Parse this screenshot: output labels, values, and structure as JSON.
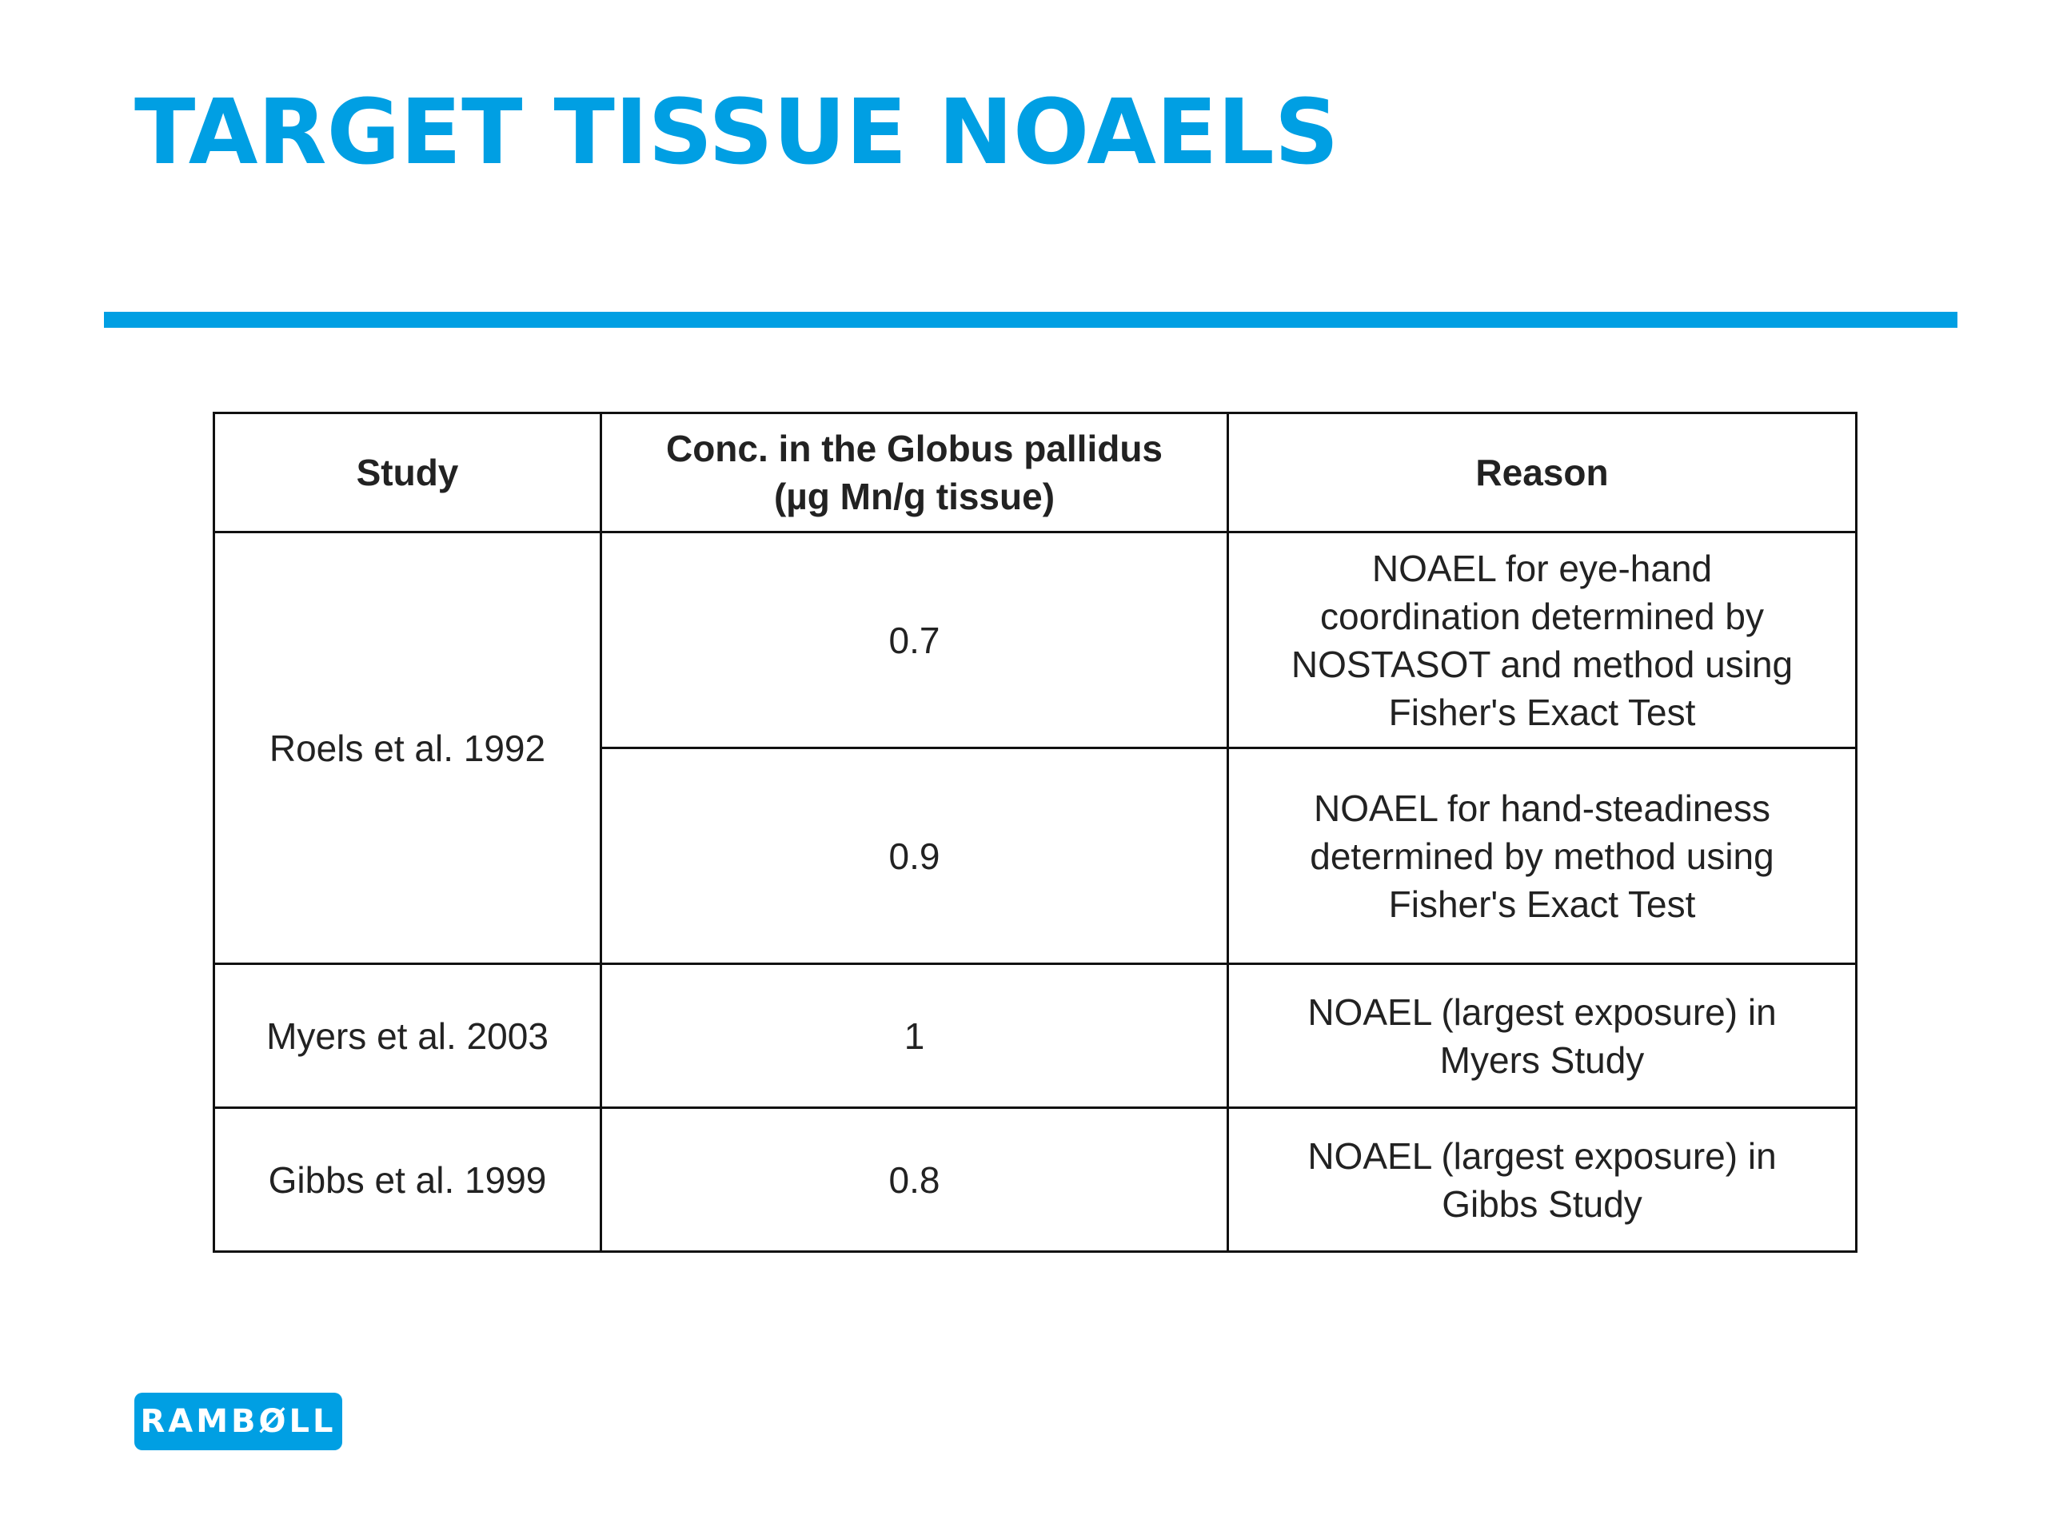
{
  "slide": {
    "title": "TARGET TISSUE NOAELS"
  },
  "table": {
    "headers": {
      "study": "Study",
      "conc_line1": "Conc. in the Globus pallidus",
      "conc_line2": "(µg Mn/g tissue)",
      "reason": "Reason"
    },
    "rows": [
      {
        "study": "Roels et al. 1992",
        "conc": "0.7",
        "reason_lines": [
          "NOAEL for eye-hand",
          "coordination determined by",
          "NOSTASOT and method using",
          "Fisher's Exact Test"
        ]
      },
      {
        "study": "Roels et al. 1992",
        "conc": "0.9",
        "reason_lines": [
          "NOAEL for hand-steadiness",
          "determined by method using",
          "Fisher's Exact Test"
        ]
      },
      {
        "study": "Myers et al. 2003",
        "conc": "1",
        "reason_lines": [
          "NOAEL (largest exposure) in",
          "Myers Study"
        ]
      },
      {
        "study": "Gibbs et al. 1999",
        "conc": "0.8",
        "reason_lines": [
          "NOAEL (largest exposure) in",
          "Gibbs Study"
        ]
      }
    ]
  },
  "logo": {
    "text": "RAMBØLL",
    "color": "#009fe3"
  },
  "colors": {
    "accent": "#009fe3",
    "text": "#222222",
    "border": "#111111"
  }
}
